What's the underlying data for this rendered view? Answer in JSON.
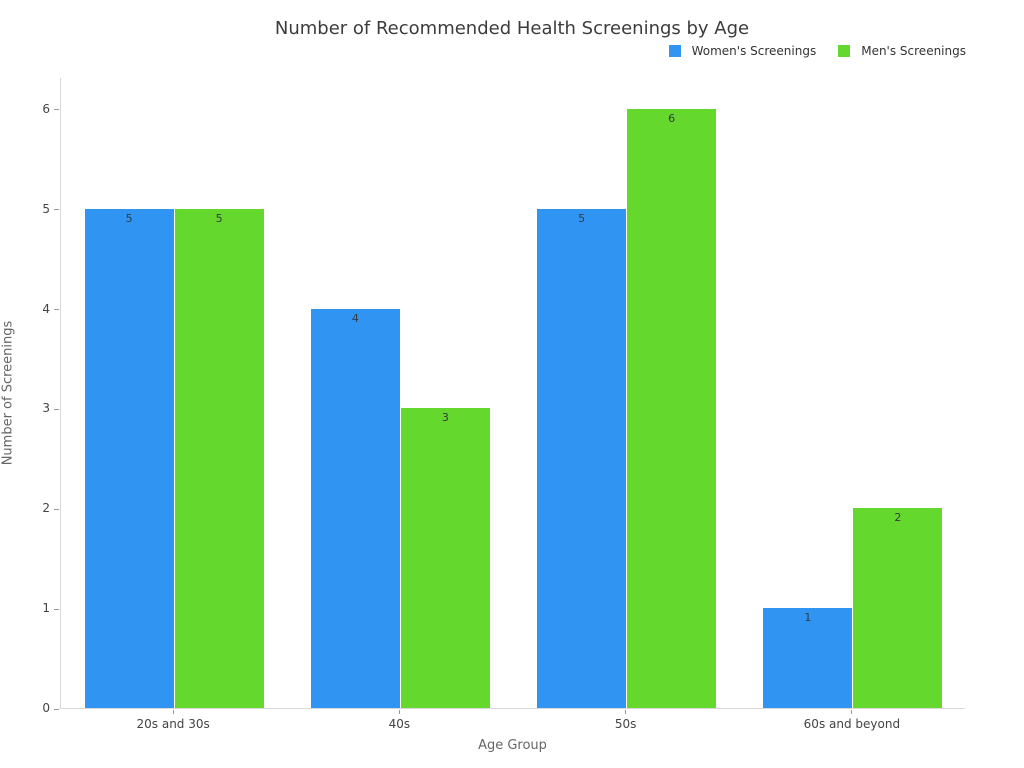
{
  "title": "Number of Recommended Health Screenings by Age",
  "colors": {
    "women": "#3095F2",
    "men": "#64D82C",
    "axis_line": "#d9d9d9",
    "tick": "#999999",
    "bar_label_text": "#333a40"
  },
  "chart_data": {
    "type": "bar",
    "title": "Number of Recommended Health Screenings by Age",
    "categories": [
      "20s and 30s",
      "40s",
      "50s",
      "60s and beyond"
    ],
    "series": [
      {
        "name": "Women's Screenings",
        "color": "#3095F2",
        "values": [
          5,
          4,
          5,
          1
        ]
      },
      {
        "name": "Men's Screenings",
        "color": "#64D82C",
        "values": [
          5,
          3,
          6,
          2
        ]
      }
    ],
    "xlabel": "Age Group",
    "ylabel": "Number of Screenings",
    "ylim": [
      0,
      6.32
    ],
    "yticks": [
      0,
      1,
      2,
      3,
      4,
      5,
      6
    ],
    "grid": false,
    "legend_position": "top-right",
    "bar_labels": "inside-top"
  }
}
